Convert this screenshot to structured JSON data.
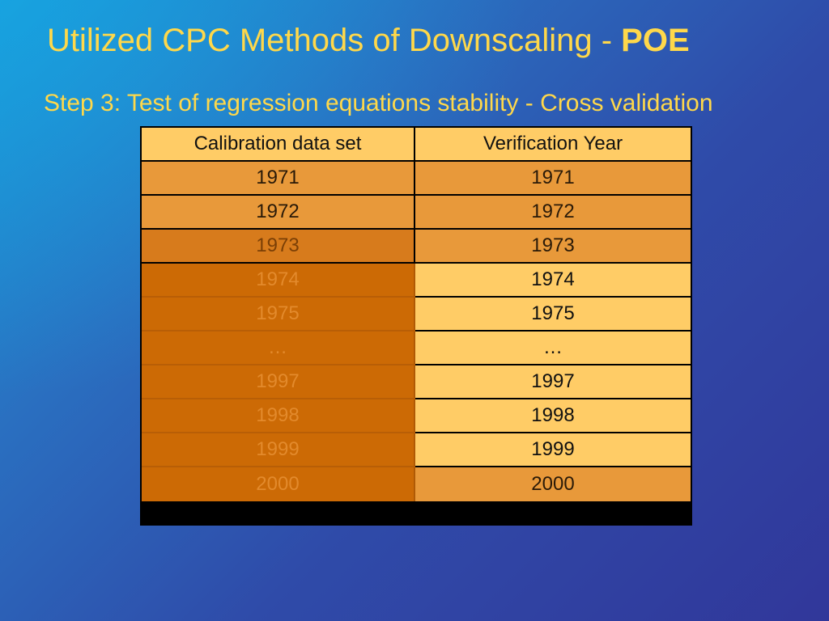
{
  "slide": {
    "title_prefix": "Utilized CPC Methods of Downscaling - ",
    "title_strong": "POE",
    "subtitle": "Step 3: Test of regression equations stability - Cross validation"
  },
  "table": {
    "headers": [
      "Calibration data set",
      "Verification Year"
    ],
    "rows": [
      {
        "calibration": "1971",
        "verification": "1971"
      },
      {
        "calibration": "1972",
        "verification": "1972"
      },
      {
        "calibration": "1973",
        "verification": "1973"
      },
      {
        "calibration": "1974",
        "verification": "1974"
      },
      {
        "calibration": "1975",
        "verification": "1975"
      },
      {
        "calibration": "…",
        "verification": "…"
      },
      {
        "calibration": "1997",
        "verification": "1997"
      },
      {
        "calibration": "1998",
        "verification": "1998"
      },
      {
        "calibration": "1999",
        "verification": "1999"
      },
      {
        "calibration": "2000",
        "verification": "2000"
      }
    ]
  },
  "colors": {
    "title": "#ffd84a",
    "header_cell": "#ffcc66",
    "highlight_light": "#e8993a",
    "highlight_dark": "#cc6a05"
  }
}
